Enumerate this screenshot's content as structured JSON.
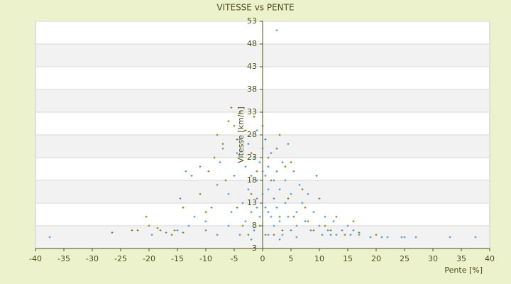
{
  "chart_data": {
    "type": "scatter",
    "title": "VITESSE vs PENTE",
    "x_label": "Pente [%]",
    "y_label": "Vitesse [km/h]",
    "xlim": [
      -40,
      40
    ],
    "xticks": [
      -40,
      -35,
      -30,
      -25,
      -20,
      -15,
      -10,
      -5,
      0,
      5,
      10,
      15,
      20,
      25,
      30,
      35,
      40
    ],
    "ylim": [
      3,
      53
    ],
    "yticks": [
      3,
      8,
      13,
      18,
      23,
      28,
      33,
      38,
      43,
      48,
      53
    ],
    "grid": true,
    "series": [
      {
        "color": "#808000",
        "x": [
          -26.5,
          -23,
          -22,
          -20,
          -20.5,
          -18,
          -16,
          -14,
          -13,
          -14,
          -11,
          -10,
          -9.5,
          -8.5,
          -8,
          -7,
          -6.5,
          -6,
          -5.5,
          -5,
          -4.5,
          -4.5,
          -4,
          -3.5,
          -3,
          -2.5,
          -2,
          -1.5,
          -1,
          -0.5,
          0,
          0.5,
          0.5,
          1,
          1.5,
          2,
          2.5,
          3,
          3.5,
          4,
          4.5,
          5,
          5.5,
          6,
          7,
          7.5,
          8,
          9,
          10,
          11,
          12,
          13,
          14.5,
          16,
          17,
          20,
          -18.5,
          -15.5,
          3,
          -2
        ],
        "values": [
          6.5,
          7,
          7,
          8,
          10,
          7,
          6,
          6.5,
          8,
          12,
          15,
          11,
          20,
          23,
          28,
          26,
          18,
          31,
          34,
          30,
          27,
          12,
          33,
          8,
          29,
          6,
          24,
          32,
          20,
          8,
          30,
          27,
          6,
          23,
          18,
          6,
          25,
          10,
          7,
          21,
          14,
          22,
          10,
          8,
          16,
          12,
          9,
          7,
          14,
          8,
          7,
          10,
          6,
          9,
          6.5,
          6,
          7.5,
          7,
          28,
          15
        ]
      },
      {
        "color": "#3a8fd9",
        "x": [
          -37.5,
          -19.5,
          -17,
          -15,
          -13,
          -12,
          -14.5,
          -12.5,
          -13.5,
          -11,
          -10,
          -9,
          -8,
          -7.5,
          -7,
          -6,
          -6,
          -5.5,
          -5,
          -4.5,
          -4,
          -3.5,
          -3,
          -3,
          -2.5,
          -2.5,
          -2,
          -2,
          -1.5,
          -1.5,
          -1,
          -1,
          -1,
          -0.5,
          -0.5,
          0,
          0,
          0,
          0.5,
          0.5,
          0.5,
          1,
          1,
          1,
          1.5,
          1.5,
          2,
          2,
          2,
          2.5,
          2.5,
          2.5,
          3,
          3,
          3.5,
          3.5,
          4,
          4,
          4.5,
          4.5,
          5,
          5,
          5.5,
          6,
          6,
          6.5,
          7,
          7.5,
          8,
          8.5,
          9,
          9.5,
          10,
          10.5,
          11,
          11.5,
          12,
          12.5,
          13,
          14,
          15,
          15.5,
          16,
          17,
          19,
          21,
          22,
          24.5,
          25,
          27,
          33,
          37.5,
          -8,
          -10,
          -4,
          -2,
          3,
          6,
          -1,
          1,
          0,
          0
        ],
        "values": [
          5.5,
          6,
          6.5,
          7,
          8,
          10,
          14,
          19,
          20,
          21,
          9,
          12,
          17,
          22,
          25,
          15,
          8,
          11,
          19,
          24,
          27,
          13,
          21,
          9,
          16,
          26,
          11,
          19,
          23,
          7,
          14,
          29,
          18,
          10,
          22,
          15,
          25,
          8,
          19,
          12,
          27,
          6,
          16,
          21,
          10,
          24,
          14,
          18,
          8,
          51,
          20,
          12,
          16,
          9,
          22,
          6,
          13,
          18,
          10,
          26,
          15,
          7,
          20,
          11,
          8,
          17,
          13,
          9,
          15,
          7,
          11,
          19,
          8,
          6,
          10,
          7,
          6,
          9,
          6,
          7,
          8,
          6,
          7,
          6,
          5.5,
          5.5,
          5.5,
          5.5,
          5.5,
          5.5,
          5.5,
          5.5,
          6,
          7,
          6,
          5,
          5,
          5.5,
          12,
          11,
          20,
          30
        ]
      }
    ]
  }
}
